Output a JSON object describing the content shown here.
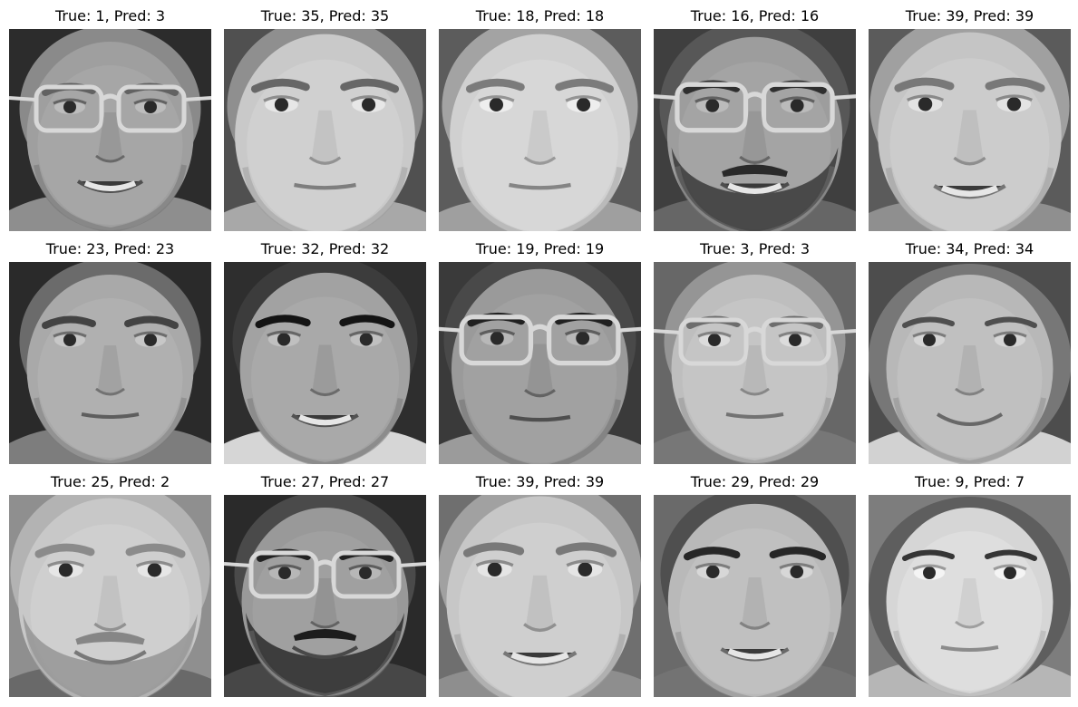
{
  "panels": [
    {
      "title": "True: 1, Pred: 3",
      "face": {
        "skin": "#9f9f9f",
        "bg": "#2c2c2c",
        "shirt": "#8e8e8e",
        "hair": "#8a8a8a",
        "glasses": true,
        "beard": false,
        "mustache": false,
        "smile": true,
        "teeth": true,
        "feminine": false,
        "scale": 1.0
      }
    },
    {
      "title": "True: 35, Pred: 35",
      "face": {
        "skin": "#c9c9c9",
        "bg": "#505050",
        "shirt": "#a8a8a8",
        "hair": "#8f8f8f",
        "glasses": false,
        "beard": false,
        "mustache": false,
        "smile": false,
        "teeth": false,
        "feminine": false,
        "scale": 1.08
      }
    },
    {
      "title": "True: 18, Pred: 18",
      "face": {
        "skin": "#d0d0d0",
        "bg": "#5c5c5c",
        "shirt": "#9f9f9f",
        "hair": "#a3a3a3",
        "glasses": false,
        "beard": false,
        "mustache": false,
        "smile": false,
        "teeth": false,
        "feminine": false,
        "scale": 1.08
      }
    },
    {
      "title": "True: 16, Pred: 16",
      "face": {
        "skin": "#9d9d9d",
        "bg": "#3f3f3f",
        "shirt": "#666666",
        "hair": "#575757",
        "glasses": true,
        "beard": true,
        "mustache": true,
        "smile": true,
        "teeth": true,
        "feminine": false,
        "scale": 1.05
      }
    },
    {
      "title": "True: 39, Pred: 39",
      "face": {
        "skin": "#c5c5c5",
        "bg": "#5b5b5b",
        "shirt": "#8f8f8f",
        "hair": "#a0a0a0",
        "glasses": false,
        "beard": false,
        "mustache": false,
        "smile": true,
        "teeth": true,
        "feminine": false,
        "scale": 1.1
      }
    },
    {
      "title": "True: 23, Pred: 23",
      "face": {
        "skin": "#a9a9a9",
        "bg": "#2a2a2a",
        "shirt": "#7d7d7d",
        "hair": "#6b6b6b",
        "glasses": false,
        "beard": false,
        "mustache": false,
        "smile": false,
        "teeth": false,
        "feminine": false,
        "scale": 1.0
      }
    },
    {
      "title": "True: 32, Pred: 32",
      "face": {
        "skin": "#a2a2a2",
        "bg": "#2e2e2e",
        "shirt": "#d6d6d6",
        "hair": "#3c3c3c",
        "glasses": false,
        "beard": false,
        "mustache": false,
        "smile": true,
        "teeth": true,
        "feminine": false,
        "scale": 1.02
      }
    },
    {
      "title": "True: 19, Pred: 19",
      "face": {
        "skin": "#9a9a9a",
        "bg": "#3a3a3a",
        "shirt": "#9b9b9b",
        "hair": "#494949",
        "glasses": true,
        "beard": false,
        "mustache": false,
        "smile": false,
        "teeth": false,
        "feminine": false,
        "scale": 1.06
      }
    },
    {
      "title": "True: 3, Pred: 3",
      "face": {
        "skin": "#bebebe",
        "bg": "#676767",
        "shirt": "#777777",
        "hair": "#959595",
        "glasses": true,
        "beard": false,
        "mustache": false,
        "smile": false,
        "teeth": false,
        "feminine": false,
        "scale": 1.0
      }
    },
    {
      "title": "True: 34, Pred: 34",
      "face": {
        "skin": "#b8b8b8",
        "bg": "#4d4d4d",
        "shirt": "#d2d2d2",
        "hair": "#777777",
        "glasses": false,
        "beard": false,
        "mustache": false,
        "smile": true,
        "teeth": false,
        "feminine": true,
        "scale": 1.0
      }
    },
    {
      "title": "True: 25, Pred: 2",
      "face": {
        "skin": "#c8c8c8",
        "bg": "#8f8f8f",
        "shirt": "#696969",
        "hair": "#b3b3b3",
        "glasses": false,
        "beard": true,
        "mustache": true,
        "smile": true,
        "teeth": false,
        "feminine": false,
        "scale": 1.1
      }
    },
    {
      "title": "True: 27, Pred: 27",
      "face": {
        "skin": "#999999",
        "bg": "#2a2a2a",
        "shirt": "#474747",
        "hair": "#4a4a4a",
        "glasses": true,
        "beard": true,
        "mustache": true,
        "smile": true,
        "teeth": false,
        "feminine": false,
        "scale": 1.0
      }
    },
    {
      "title": "True: 39, Pred: 39",
      "face": {
        "skin": "#c7c7c7",
        "bg": "#6f6f6f",
        "shirt": "#8e8e8e",
        "hair": "#a1a1a1",
        "glasses": false,
        "beard": false,
        "mustache": false,
        "smile": true,
        "teeth": true,
        "feminine": false,
        "scale": 1.12
      }
    },
    {
      "title": "True: 29, Pred: 29",
      "face": {
        "skin": "#b9b9b9",
        "bg": "#6a6a6a",
        "shirt": "#737373",
        "hair": "#4f4f4f",
        "glasses": false,
        "beard": false,
        "mustache": false,
        "smile": true,
        "teeth": true,
        "feminine": false,
        "scale": 1.04
      }
    },
    {
      "title": "True: 9, Pred: 7",
      "face": {
        "skin": "#d6d6d6",
        "bg": "#7d7d7d",
        "shirt": "#b6b6b6",
        "hair": "#5e5e5e",
        "glasses": false,
        "beard": false,
        "mustache": false,
        "smile": false,
        "teeth": false,
        "feminine": true,
        "scale": 1.0
      }
    }
  ]
}
